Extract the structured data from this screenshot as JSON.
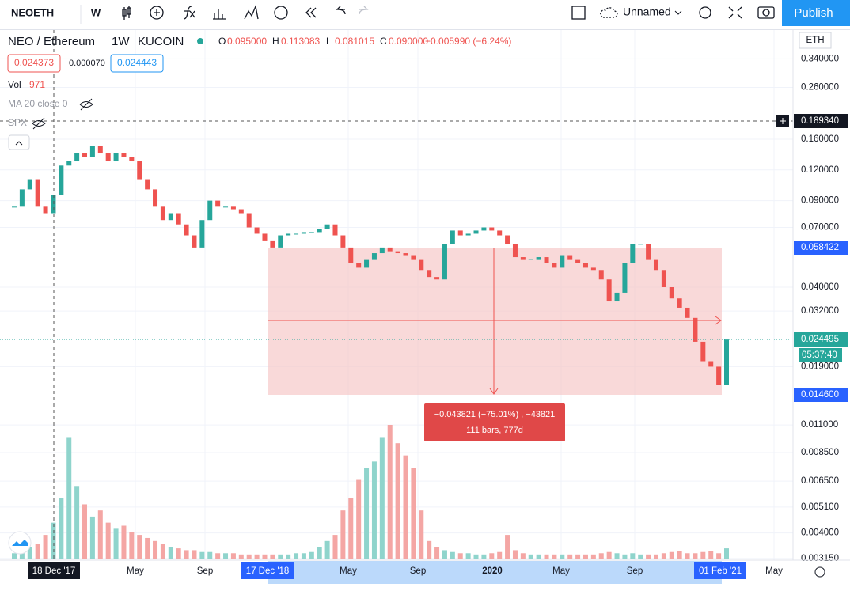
{
  "toolbar": {
    "symbol": "NEOETH",
    "interval": "W",
    "layout_name": "Unnamed",
    "publish": "Publish"
  },
  "legend": {
    "pair": "NEO / Ethereum",
    "resolution": "1W",
    "exchange": "KUCOIN",
    "ohlc": [
      {
        "key": "O",
        "value": "0.095000"
      },
      {
        "key": "H",
        "value": "0.113083"
      },
      {
        "key": "L",
        "value": "0.081015"
      },
      {
        "key": "C",
        "value": "0.090000"
      }
    ],
    "change": "−0.005990 (−6.24%)",
    "bid": "0.024373",
    "spread": "0.000070",
    "ask": "0.024443",
    "volume_label": "Vol",
    "volume_value": "971",
    "ma": "MA 20 close 0",
    "compare": "SPX"
  },
  "price_axis": {
    "currency": "ETH",
    "ticks": [
      {
        "value": 0.34,
        "label": "0.340000"
      },
      {
        "value": 0.26,
        "label": "0.260000"
      },
      {
        "value": 0.16,
        "label": "0.160000"
      },
      {
        "value": 0.12,
        "label": "0.120000"
      },
      {
        "value": 0.09,
        "label": "0.090000"
      },
      {
        "value": 0.07,
        "label": "0.070000"
      },
      {
        "value": 0.04,
        "label": "0.040000"
      },
      {
        "value": 0.032,
        "label": "0.032000"
      },
      {
        "value": 0.019,
        "label": "0.019000"
      },
      {
        "value": 0.011,
        "label": "0.011000"
      },
      {
        "value": 0.0085,
        "label": "0.008500"
      },
      {
        "value": 0.0065,
        "label": "0.006500"
      },
      {
        "value": 0.0051,
        "label": "0.005100"
      },
      {
        "value": 0.004,
        "label": "0.004000"
      },
      {
        "value": 0.00315,
        "label": "0.003150"
      }
    ]
  },
  "markers": {
    "crosshair": "0.189340",
    "range_high": "0.058422",
    "last": "0.024495",
    "countdown": "05:37:40",
    "range_low": "0.014600"
  },
  "time_axis": [
    "18 Dec '17",
    "May",
    "Sep",
    "17 Dec '18",
    "May",
    "Sep",
    "2020",
    "May",
    "Sep",
    "01 Feb '21",
    "May"
  ],
  "measure": {
    "line1": "−0.043821 (−75.01%) , −43821",
    "line2": "111 bars, 777d"
  },
  "chart": {
    "closes": [
      0.085,
      0.1,
      0.11,
      0.085,
      0.08,
      0.095,
      0.125,
      0.13,
      0.14,
      0.135,
      0.15,
      0.14,
      0.13,
      0.14,
      0.135,
      0.13,
      0.11,
      0.1,
      0.085,
      0.075,
      0.08,
      0.072,
      0.065,
      0.058,
      0.075,
      0.09,
      0.085,
      0.085,
      0.083,
      0.08,
      0.07,
      0.066,
      0.062,
      0.058,
      0.065,
      0.066,
      0.066,
      0.067,
      0.067,
      0.069,
      0.072,
      0.065,
      0.058,
      0.05,
      0.048,
      0.052,
      0.055,
      0.058,
      0.056,
      0.055,
      0.054,
      0.052,
      0.047,
      0.044,
      0.043,
      0.06,
      0.068,
      0.065,
      0.066,
      0.068,
      0.07,
      0.068,
      0.065,
      0.06,
      0.053,
      0.052,
      0.052,
      0.053,
      0.05,
      0.048,
      0.054,
      0.052,
      0.05,
      0.048,
      0.047,
      0.043,
      0.035,
      0.038,
      0.05,
      0.06,
      0.06,
      0.052,
      0.047,
      0.04,
      0.036,
      0.033,
      0.03,
      0.024,
      0.02,
      0.019,
      0.016,
      0.0245
    ],
    "volumes": [
      10,
      15,
      20,
      25,
      40,
      60,
      100,
      200,
      120,
      90,
      70,
      80,
      60,
      50,
      55,
      45,
      40,
      35,
      30,
      25,
      20,
      18,
      15,
      15,
      12,
      12,
      10,
      10,
      10,
      8,
      8,
      8,
      8,
      8,
      8,
      8,
      10,
      10,
      12,
      20,
      30,
      40,
      80,
      100,
      130,
      150,
      160,
      200,
      220,
      190,
      170,
      150,
      80,
      30,
      20,
      15,
      12,
      10,
      10,
      8,
      8,
      10,
      12,
      40,
      15,
      10,
      8,
      8,
      8,
      8,
      8,
      8,
      8,
      8,
      8,
      10,
      12,
      10,
      8,
      10,
      8,
      8,
      8,
      10,
      12,
      14,
      10,
      10,
      12,
      14,
      10,
      18
    ]
  }
}
